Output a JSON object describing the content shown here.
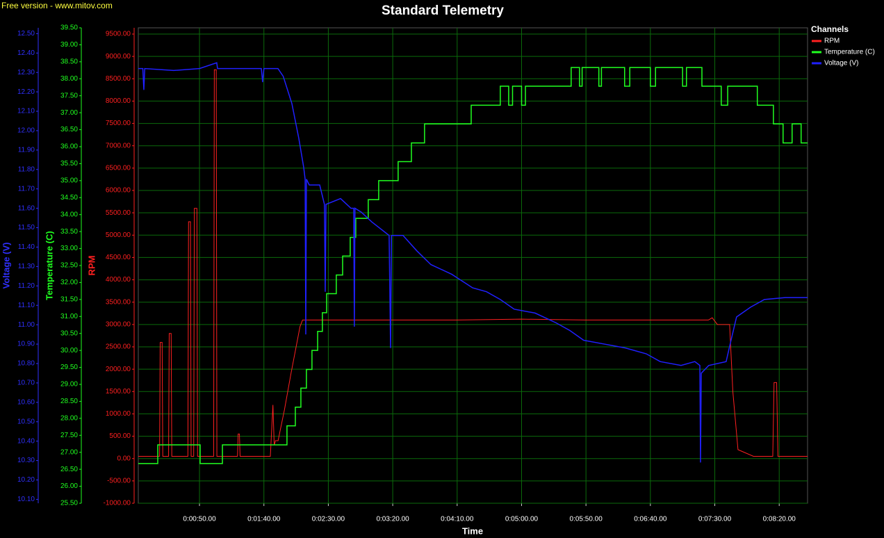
{
  "chart_data": {
    "type": "line",
    "watermark": "Free version - www.mitov.com",
    "title": "Standard Telemetry",
    "xlabel": "Time",
    "ylabel": "RPM",
    "y2label": "Temperature (C)",
    "y3label": "Voltage (V)",
    "legend_title": "Channels",
    "legend_position": "right",
    "grid": true,
    "xlim": [
      2.5,
      522
    ],
    "xticks": [
      {
        "value": 50,
        "label": "0:00:50.00"
      },
      {
        "value": 100,
        "label": "0:01:40.00"
      },
      {
        "value": 150,
        "label": "0:02:30.00"
      },
      {
        "value": 200,
        "label": "0:03:20.00"
      },
      {
        "value": 250,
        "label": "0:04:10.00"
      },
      {
        "value": 300,
        "label": "0:05:00.00"
      },
      {
        "value": 350,
        "label": "0:05:50.00"
      },
      {
        "value": 400,
        "label": "0:06:40.00"
      },
      {
        "value": 450,
        "label": "0:07:30.00"
      },
      {
        "value": 500,
        "label": "0:08:20.00"
      }
    ],
    "ylim": [
      -1000,
      9640
    ],
    "yticks": [
      {
        "value": -1000,
        "label": "-1000.00"
      },
      {
        "value": -500,
        "label": "-500.00"
      },
      {
        "value": 0,
        "label": "0.00"
      },
      {
        "value": 500,
        "label": "500.00"
      },
      {
        "value": 1000,
        "label": "1000.00"
      },
      {
        "value": 1500,
        "label": "1500.00"
      },
      {
        "value": 2000,
        "label": "2000.00"
      },
      {
        "value": 2500,
        "label": "2500.00"
      },
      {
        "value": 3000,
        "label": "3000.00"
      },
      {
        "value": 3500,
        "label": "3500.00"
      },
      {
        "value": 4000,
        "label": "4000.00"
      },
      {
        "value": 4500,
        "label": "4500.00"
      },
      {
        "value": 5000,
        "label": "5000.00"
      },
      {
        "value": 5500,
        "label": "5500.00"
      },
      {
        "value": 6000,
        "label": "6000.00"
      },
      {
        "value": 6500,
        "label": "6500.00"
      },
      {
        "value": 7000,
        "label": "7000.00"
      },
      {
        "value": 7500,
        "label": "7500.00"
      },
      {
        "value": 8000,
        "label": "8000.00"
      },
      {
        "value": 8500,
        "label": "8500.00"
      },
      {
        "value": 9000,
        "label": "9000.00"
      },
      {
        "value": 9500,
        "label": "9500.00"
      }
    ],
    "y2lim": [
      25.5,
      39.5
    ],
    "y2ticks": [
      {
        "value": 25.5,
        "label": "25.50"
      },
      {
        "value": 26,
        "label": "26.00"
      },
      {
        "value": 26.5,
        "label": "26.50"
      },
      {
        "value": 27,
        "label": "27.00"
      },
      {
        "value": 27.5,
        "label": "27.50"
      },
      {
        "value": 28,
        "label": "28.00"
      },
      {
        "value": 28.5,
        "label": "28.50"
      },
      {
        "value": 29,
        "label": "29.00"
      },
      {
        "value": 29.5,
        "label": "29.50"
      },
      {
        "value": 30,
        "label": "30.00"
      },
      {
        "value": 30.5,
        "label": "30.50"
      },
      {
        "value": 31,
        "label": "31.00"
      },
      {
        "value": 31.5,
        "label": "31.50"
      },
      {
        "value": 32,
        "label": "32.00"
      },
      {
        "value": 32.5,
        "label": "32.50"
      },
      {
        "value": 33,
        "label": "33.00"
      },
      {
        "value": 33.5,
        "label": "33.50"
      },
      {
        "value": 34,
        "label": "34.00"
      },
      {
        "value": 34.5,
        "label": "34.50"
      },
      {
        "value": 35,
        "label": "35.00"
      },
      {
        "value": 35.5,
        "label": "35.50"
      },
      {
        "value": 36,
        "label": "36.00"
      },
      {
        "value": 36.5,
        "label": "36.50"
      },
      {
        "value": 37,
        "label": "37.00"
      },
      {
        "value": 37.5,
        "label": "37.50"
      },
      {
        "value": 38,
        "label": "38.00"
      },
      {
        "value": 38.5,
        "label": "38.50"
      },
      {
        "value": 39,
        "label": "39.00"
      },
      {
        "value": 39.5,
        "label": "39.50"
      }
    ],
    "y3lim": [
      10.08,
      12.53
    ],
    "y3ticks": [
      {
        "value": 10.1,
        "label": "10.10"
      },
      {
        "value": 10.2,
        "label": "10.20"
      },
      {
        "value": 10.3,
        "label": "10.30"
      },
      {
        "value": 10.4,
        "label": "10.40"
      },
      {
        "value": 10.5,
        "label": "10.50"
      },
      {
        "value": 10.6,
        "label": "10.60"
      },
      {
        "value": 10.7,
        "label": "10.70"
      },
      {
        "value": 10.8,
        "label": "10.80"
      },
      {
        "value": 10.9,
        "label": "10.90"
      },
      {
        "value": 11,
        "label": "11.00"
      },
      {
        "value": 11.1,
        "label": "11.10"
      },
      {
        "value": 11.2,
        "label": "11.20"
      },
      {
        "value": 11.3,
        "label": "11.30"
      },
      {
        "value": 11.4,
        "label": "11.40"
      },
      {
        "value": 11.5,
        "label": "11.50"
      },
      {
        "value": 11.6,
        "label": "11.60"
      },
      {
        "value": 11.7,
        "label": "11.70"
      },
      {
        "value": 11.8,
        "label": "11.80"
      },
      {
        "value": 11.9,
        "label": "11.90"
      },
      {
        "value": 12,
        "label": "12.00"
      },
      {
        "value": 12.1,
        "label": "12.10"
      },
      {
        "value": 12.2,
        "label": "12.20"
      },
      {
        "value": 12.3,
        "label": "12.30"
      },
      {
        "value": 12.4,
        "label": "12.40"
      },
      {
        "value": 12.5,
        "label": "12.50"
      }
    ],
    "series": [
      {
        "name": "RPM",
        "color": "#ff2020",
        "axis": "y",
        "x": [
          2.5,
          19,
          19.5,
          21,
          21.5,
          26,
          26.5,
          28,
          28.5,
          41,
          41.5,
          43,
          43.5,
          45.5,
          46,
          48,
          48.5,
          61,
          61.5,
          63,
          63.5,
          79.5,
          80,
          81,
          81.5,
          105,
          107,
          108,
          109,
          111,
          116,
          121,
          125,
          128,
          130,
          150,
          200,
          250,
          300,
          350,
          400,
          445,
          448,
          452,
          458,
          461.5,
          464,
          468,
          480,
          495,
          496,
          498,
          499,
          510,
          522
        ],
        "values": [
          50,
          50,
          2600,
          2600,
          50,
          50,
          2800,
          2800,
          50,
          50,
          5300,
          5300,
          50,
          50,
          5600,
          5600,
          50,
          50,
          8700,
          8700,
          50,
          50,
          550,
          550,
          50,
          50,
          1200,
          300,
          400,
          400,
          1100,
          1900,
          2500,
          2950,
          3100,
          3100,
          3100,
          3100,
          3120,
          3100,
          3100,
          3100,
          3150,
          3000,
          3000,
          3000,
          1500,
          200,
          50,
          50,
          1700,
          1700,
          50,
          50,
          50
        ]
      },
      {
        "name": "Temperature (C)",
        "color": "#20ff20",
        "axis": "y2",
        "x": [
          2.5,
          17.6,
          17.6,
          50.5,
          50.5,
          67.8,
          67.8,
          117.9,
          117.9,
          124.4,
          124.4,
          128.7,
          128.7,
          133,
          133,
          137.3,
          137.3,
          141.7,
          141.7,
          145.4,
          145.4,
          148.7,
          148.7,
          156.2,
          156.2,
          161.1,
          161.1,
          167,
          167,
          171.3,
          171.3,
          181,
          181,
          189.1,
          189.1,
          204.2,
          204.2,
          214.5,
          214.5,
          224.7,
          224.7,
          260.9,
          260.9,
          283.5,
          283.5,
          290,
          290,
          293,
          293,
          300,
          300,
          303,
          303,
          338.5,
          338.5,
          345,
          345,
          347,
          347,
          360,
          360,
          362,
          362,
          380,
          380,
          384,
          384,
          400,
          400,
          404,
          404,
          425,
          425,
          428,
          428,
          440,
          440,
          455,
          455,
          460,
          460,
          483,
          483,
          495.5,
          495.5,
          503,
          503,
          510,
          510,
          517,
          517,
          522
        ],
        "values": [
          26.67,
          26.67,
          27.22,
          27.22,
          26.67,
          26.67,
          27.22,
          27.22,
          27.78,
          27.78,
          28.33,
          28.33,
          28.89,
          28.89,
          29.44,
          29.44,
          30.0,
          30.0,
          30.56,
          30.56,
          31.11,
          31.11,
          31.67,
          31.67,
          32.22,
          32.22,
          32.78,
          32.78,
          33.33,
          33.33,
          33.89,
          33.89,
          34.44,
          34.44,
          35.0,
          35.0,
          35.56,
          35.56,
          36.11,
          36.11,
          36.67,
          36.67,
          37.22,
          37.22,
          37.78,
          37.78,
          37.22,
          37.22,
          37.78,
          37.78,
          37.22,
          37.22,
          37.78,
          37.78,
          38.33,
          38.33,
          37.78,
          37.78,
          38.33,
          38.33,
          37.78,
          37.78,
          38.33,
          38.33,
          37.78,
          37.78,
          38.33,
          38.33,
          37.78,
          37.78,
          38.33,
          38.33,
          37.78,
          37.78,
          38.33,
          38.33,
          37.78,
          37.78,
          37.22,
          37.22,
          37.78,
          37.78,
          37.22,
          37.22,
          36.67,
          36.67,
          36.11,
          36.11,
          36.67,
          36.67,
          36.11,
          36.11
        ]
      },
      {
        "name": "Voltage (V)",
        "color": "#2020ff",
        "axis": "y3",
        "x": [
          2.5,
          6,
          6.8,
          7.5,
          30,
          50,
          63.4,
          64,
          98,
          99,
          100,
          110.9,
          115,
          121.7,
          127.1,
          130.9,
          132,
          132.5,
          133,
          135.2,
          143.3,
          147,
          147.6,
          148.2,
          159.5,
          167.6,
          169.7,
          170.2,
          170.7,
          175.6,
          183.7,
          197.2,
          198.3,
          199,
          208,
          218.8,
          229.6,
          245.8,
          262,
          272.8,
          283.5,
          294.3,
          310.5,
          326.7,
          337.5,
          348.2,
          364.4,
          380.6,
          396.8,
          407.6,
          423.8,
          434.5,
          438.4,
          438.9,
          439.5,
          445.3,
          458.8,
          462.6,
          466.9,
          477.7,
          488.5,
          504.7,
          522
        ],
        "values": [
          12.32,
          12.32,
          12.21,
          12.32,
          12.31,
          12.32,
          12.35,
          12.32,
          12.32,
          12.25,
          12.32,
          12.32,
          12.28,
          12.14,
          11.96,
          11.81,
          11.75,
          10.95,
          11.75,
          11.72,
          11.72,
          11.62,
          11.17,
          11.62,
          11.65,
          11.6,
          11.6,
          10.99,
          11.6,
          11.58,
          11.53,
          11.46,
          10.88,
          11.46,
          11.46,
          11.38,
          11.31,
          11.26,
          11.19,
          11.17,
          11.13,
          11.08,
          11.06,
          11.01,
          10.97,
          10.92,
          10.9,
          10.88,
          10.85,
          10.81,
          10.79,
          10.81,
          10.79,
          10.29,
          10.75,
          10.79,
          10.81,
          10.92,
          11.04,
          11.09,
          11.13,
          11.14,
          11.14
        ]
      }
    ]
  }
}
